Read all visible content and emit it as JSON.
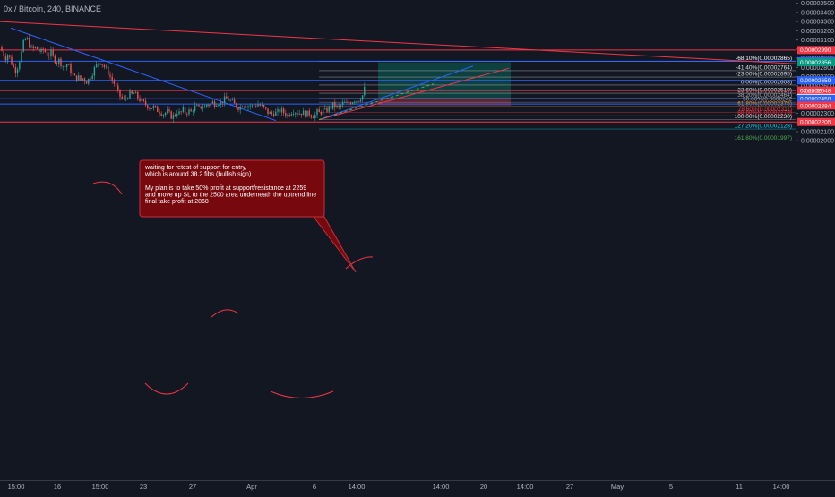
{
  "chart_data": {
    "type": "candlestick",
    "title": "0x / Bitcoin, 240, BINANCE",
    "price_unit": "BTC",
    "ylim": [
      1.95e-05,
      3.5e-05
    ],
    "y_ticks": [
      "0.00003500",
      "0.00003400",
      "0.00003300",
      "0.00003200",
      "0.00003100",
      "0.00003000",
      "0.00002900",
      "0.00002800",
      "0.00002700",
      "0.00002600",
      "0.00002500",
      "0.00002400",
      "0.00002300",
      "0.00002200",
      "0.00002100",
      "0.00002000"
    ],
    "x_ticks": [
      "15:00",
      "16",
      "15:00",
      "23",
      "27",
      "Apr",
      "6",
      "14:00",
      "14:00",
      "20",
      "14:00",
      "27",
      "May",
      "5",
      "11",
      "14:00"
    ],
    "grid": false,
    "close_path": [
      [
        0,
        3020
      ],
      [
        3,
        2960
      ],
      [
        6,
        2900
      ],
      [
        9,
        2950
      ],
      [
        12,
        2870
      ],
      [
        15,
        2800
      ],
      [
        18,
        2760
      ],
      [
        21,
        2850
      ],
      [
        24,
        2960
      ],
      [
        27,
        3100
      ],
      [
        30,
        3120
      ],
      [
        33,
        3040
      ],
      [
        36,
        2990
      ],
      [
        39,
        3020
      ],
      [
        42,
        3000
      ],
      [
        45,
        2960
      ],
      [
        48,
        2990
      ],
      [
        51,
        2970
      ],
      [
        54,
        2930
      ],
      [
        57,
        2960
      ],
      [
        60,
        2900
      ],
      [
        63,
        2860
      ],
      [
        66,
        2880
      ],
      [
        69,
        2830
      ],
      [
        72,
        2800
      ],
      [
        75,
        2840
      ],
      [
        78,
        2780
      ],
      [
        81,
        2720
      ],
      [
        84,
        2680
      ],
      [
        87,
        2700
      ],
      [
        90,
        2660
      ],
      [
        93,
        2690
      ],
      [
        96,
        2640
      ],
      [
        99,
        2670
      ],
      [
        102,
        2720
      ],
      [
        105,
        2780
      ],
      [
        108,
        2830
      ],
      [
        111,
        2870
      ],
      [
        114,
        2840
      ],
      [
        117,
        2800
      ],
      [
        120,
        2760
      ],
      [
        123,
        2700
      ],
      [
        126,
        2650
      ],
      [
        129,
        2600
      ],
      [
        132,
        2520
      ],
      [
        135,
        2470
      ],
      [
        138,
        2440
      ],
      [
        141,
        2470
      ],
      [
        144,
        2510
      ],
      [
        147,
        2500
      ],
      [
        150,
        2520
      ],
      [
        153,
        2480
      ],
      [
        156,
        2450
      ],
      [
        159,
        2420
      ],
      [
        162,
        2400
      ],
      [
        165,
        2380
      ],
      [
        168,
        2360
      ],
      [
        171,
        2370
      ],
      [
        174,
        2340
      ],
      [
        177,
        2330
      ],
      [
        180,
        2310
      ],
      [
        183,
        2290
      ],
      [
        186,
        2320
      ],
      [
        189,
        2290
      ],
      [
        192,
        2260
      ],
      [
        195,
        2280
      ],
      [
        198,
        2320
      ],
      [
        201,
        2290
      ],
      [
        204,
        2340
      ],
      [
        207,
        2300
      ],
      [
        210,
        2330
      ],
      [
        213,
        2310
      ],
      [
        216,
        2360
      ],
      [
        219,
        2370
      ],
      [
        222,
        2350
      ],
      [
        225,
        2380
      ],
      [
        228,
        2360
      ],
      [
        231,
        2400
      ],
      [
        234,
        2390
      ],
      [
        237,
        2420
      ],
      [
        240,
        2400
      ],
      [
        243,
        2430
      ],
      [
        246,
        2410
      ],
      [
        249,
        2440
      ],
      [
        252,
        2460
      ],
      [
        255,
        2450
      ],
      [
        258,
        2430
      ],
      [
        261,
        2400
      ],
      [
        264,
        2380
      ],
      [
        267,
        2360
      ],
      [
        270,
        2390
      ],
      [
        273,
        2400
      ],
      [
        276,
        2380
      ],
      [
        279,
        2390
      ],
      [
        282,
        2370
      ],
      [
        285,
        2390
      ],
      [
        288,
        2400
      ],
      [
        291,
        2380
      ],
      [
        294,
        2360
      ],
      [
        297,
        2330
      ],
      [
        300,
        2300
      ],
      [
        303,
        2290
      ],
      [
        306,
        2310
      ],
      [
        309,
        2300
      ],
      [
        312,
        2330
      ],
      [
        315,
        2320
      ],
      [
        318,
        2300
      ],
      [
        321,
        2280
      ],
      [
        324,
        2310
      ],
      [
        327,
        2330
      ],
      [
        330,
        2320
      ],
      [
        333,
        2300
      ],
      [
        336,
        2310
      ],
      [
        339,
        2300
      ],
      [
        342,
        2290
      ],
      [
        345,
        2300
      ],
      [
        348,
        2280
      ],
      [
        351,
        2270
      ],
      [
        354,
        2310
      ],
      [
        357,
        2300
      ],
      [
        360,
        2330
      ],
      [
        363,
        2320
      ],
      [
        366,
        2350
      ],
      [
        369,
        2360
      ],
      [
        372,
        2390
      ],
      [
        375,
        2370
      ],
      [
        378,
        2360
      ],
      [
        381,
        2390
      ],
      [
        384,
        2410
      ],
      [
        387,
        2400
      ],
      [
        390,
        2420
      ],
      [
        393,
        2430
      ],
      [
        396,
        2450
      ],
      [
        399,
        2440
      ],
      [
        402,
        2470
      ],
      [
        405,
        2500
      ],
      [
        408,
        2610
      ]
    ],
    "fib_levels": [
      {
        "label": "-68.10%(0.00002865)",
        "price": 2865,
        "color": "#ffffff"
      },
      {
        "label": "-41.40%(0.00002764)",
        "price": 2764,
        "color": "#e0e0e0"
      },
      {
        "label": "-23.00%(0.00002695)",
        "price": 2695,
        "color": "#e0e0e0"
      },
      {
        "label": "0.00%(0.00002608)",
        "price": 2608,
        "color": "#e0e0e0"
      },
      {
        "label": "23.60%(0.00002519)",
        "price": 2519,
        "color": "#e0e0e0"
      },
      {
        "label": "38.20%(0.00002464)",
        "price": 2464,
        "color": "#a8a8a8"
      },
      {
        "label": "50.00%(0.0000242",
        "price": 2420,
        "color": "#a8a8a8"
      },
      {
        "label": "61.80%(0.00002375)",
        "price": 2375,
        "color": "#ff9800"
      },
      {
        "label": "78.60%(0.00002311)",
        "price": 2311,
        "color": "#f23645"
      },
      {
        "label": "88.60%(0.00002273)",
        "price": 2273,
        "color": "#f23645"
      },
      {
        "label": "100.00%(0.00002230)",
        "price": 2230,
        "color": "#e0e0e0"
      },
      {
        "label": "127.20%(0.00002128)",
        "price": 2128,
        "color": "#00e5ff"
      },
      {
        "label": "161.80%(0.00001997)",
        "price": 1997,
        "color": "#4caf50"
      }
    ],
    "price_badges": [
      {
        "text": "0.00002990",
        "price": 2990,
        "color": "#f23645"
      },
      {
        "text": "0.00002868",
        "price": 2868,
        "color": "#2962ff"
      },
      {
        "text": "0.00002856",
        "price": 2856,
        "color": "#089981"
      },
      {
        "text": "0.00002659",
        "price": 2659,
        "color": "#2962ff"
      },
      {
        "text": "0.00002548",
        "price": 2548,
        "color": "#f23645"
      },
      {
        "text": "0.00002467",
        "price": 2467,
        "color": "#ffffff",
        "text_color": "#131722"
      },
      {
        "text": "0.00002458",
        "price": 2458,
        "color": "#2962ff"
      },
      {
        "text": "0.00002401",
        "price": 2401,
        "color": "#2962ff"
      },
      {
        "text": "0.00002384",
        "price": 2384,
        "color": "#f23645"
      },
      {
        "text": "0.00002205",
        "price": 2205,
        "color": "#f23645"
      }
    ],
    "countdown": "03:22:57",
    "horizontal_lines": [
      {
        "price": 2990,
        "color": "#f23645"
      },
      {
        "price": 2868,
        "color": "#2962ff"
      },
      {
        "price": 2659,
        "color": "#2962ff"
      },
      {
        "price": 2548,
        "color": "#f23645"
      },
      {
        "price": 2458,
        "color": "#2962ff"
      },
      {
        "price": 2401,
        "color": "#2962ff"
      },
      {
        "price": 2205,
        "color": "#f23645"
      }
    ],
    "annotation": {
      "lines": [
        "waiting for retest of support for entry,",
        "which is around 38.2 fibs (bullish sign)",
        "",
        "My plan is to take 50% profit at support/resistance at 2259",
        "and move up SL to the 2500 area underneath the uptrend line",
        "final take profit  at 2868"
      ]
    },
    "position": {
      "entry": 2464,
      "take_profit": 2856,
      "stop_loss": 2384
    }
  },
  "colors": {
    "background": "#131722",
    "up_candle": "#26a69a",
    "down_candle": "#ef5350",
    "axis_text": "#b2b5be"
  }
}
